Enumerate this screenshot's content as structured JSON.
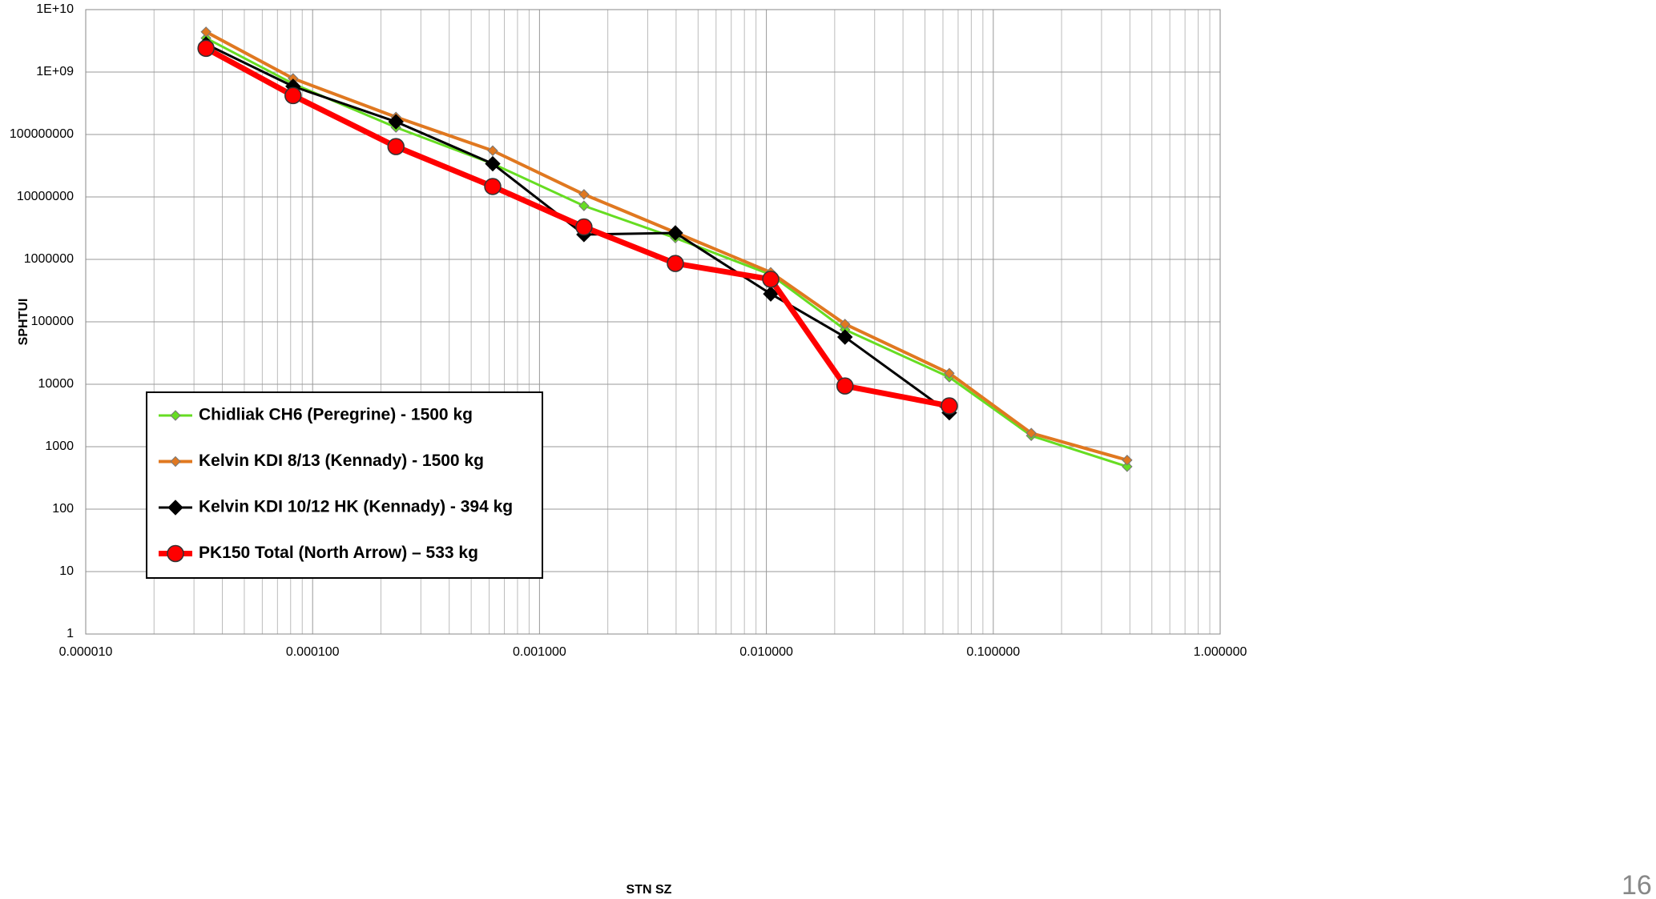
{
  "chart_data": {
    "type": "line",
    "log_x": true,
    "log_y": true,
    "grid": true,
    "legend": "lower left",
    "xlabel": "STN SZ",
    "ylabel": "SPHTUI",
    "page_number": "16",
    "x": [
      3.39e-05,
      8.2e-05,
      0.000233,
      0.000622,
      0.00157,
      0.00397,
      0.01045,
      0.0222,
      0.064,
      0.147,
      0.389
    ],
    "xlim": [
      1e-05,
      1
    ],
    "xticks": [
      {
        "value": 1e-05,
        "label": "0.000010"
      },
      {
        "value": 0.0001,
        "label": "0.000100"
      },
      {
        "value": 0.001,
        "label": "0.001000"
      },
      {
        "value": 0.01,
        "label": "0.010000"
      },
      {
        "value": 0.1,
        "label": "0.100000"
      },
      {
        "value": 1,
        "label": "1.000000"
      }
    ],
    "ylim": [
      1,
      10000000000
    ],
    "yticks": [
      {
        "value": 10000000000,
        "label": "1E+10"
      },
      {
        "value": 1000000000,
        "label": "1E+09"
      },
      100000000,
      10000000,
      1000000,
      100000,
      10000,
      1000,
      100,
      10,
      1
    ],
    "series": [
      {
        "name": "Chidliak CH6 (Peregrine) - 1500 kg",
        "color": "#66dd22",
        "marker": "diamond",
        "values": [
          3500000000,
          650000000,
          130000000,
          34000000,
          7200000,
          2200000,
          570000,
          75000,
          13000,
          1500,
          480
        ]
      },
      {
        "name": "Kelvin KDI 8/13 (Kennady) - 1500 kg",
        "color": "#e07820",
        "marker": "diamond",
        "values": [
          4400000000,
          790000000,
          190000000,
          55000000,
          11000000,
          2700000,
          620000,
          92000,
          15000,
          1650,
          610
        ]
      },
      {
        "name": "Kelvin KDI 10/12 HK (Kennady) - 394 kg",
        "color": "#000000",
        "marker": "diamond",
        "values": [
          2800000000,
          590000000,
          160000000,
          34000000,
          2500000,
          2650000,
          280000,
          57000,
          3500,
          null,
          null
        ]
      },
      {
        "name": "PK150 Total (North Arrow) – 533 kg",
        "color": "#ff0000",
        "marker": "circle",
        "values": [
          2400000000,
          420000000,
          64000000,
          14700000,
          3300000,
          860000,
          480000,
          9400,
          4500,
          null,
          null
        ]
      }
    ]
  }
}
